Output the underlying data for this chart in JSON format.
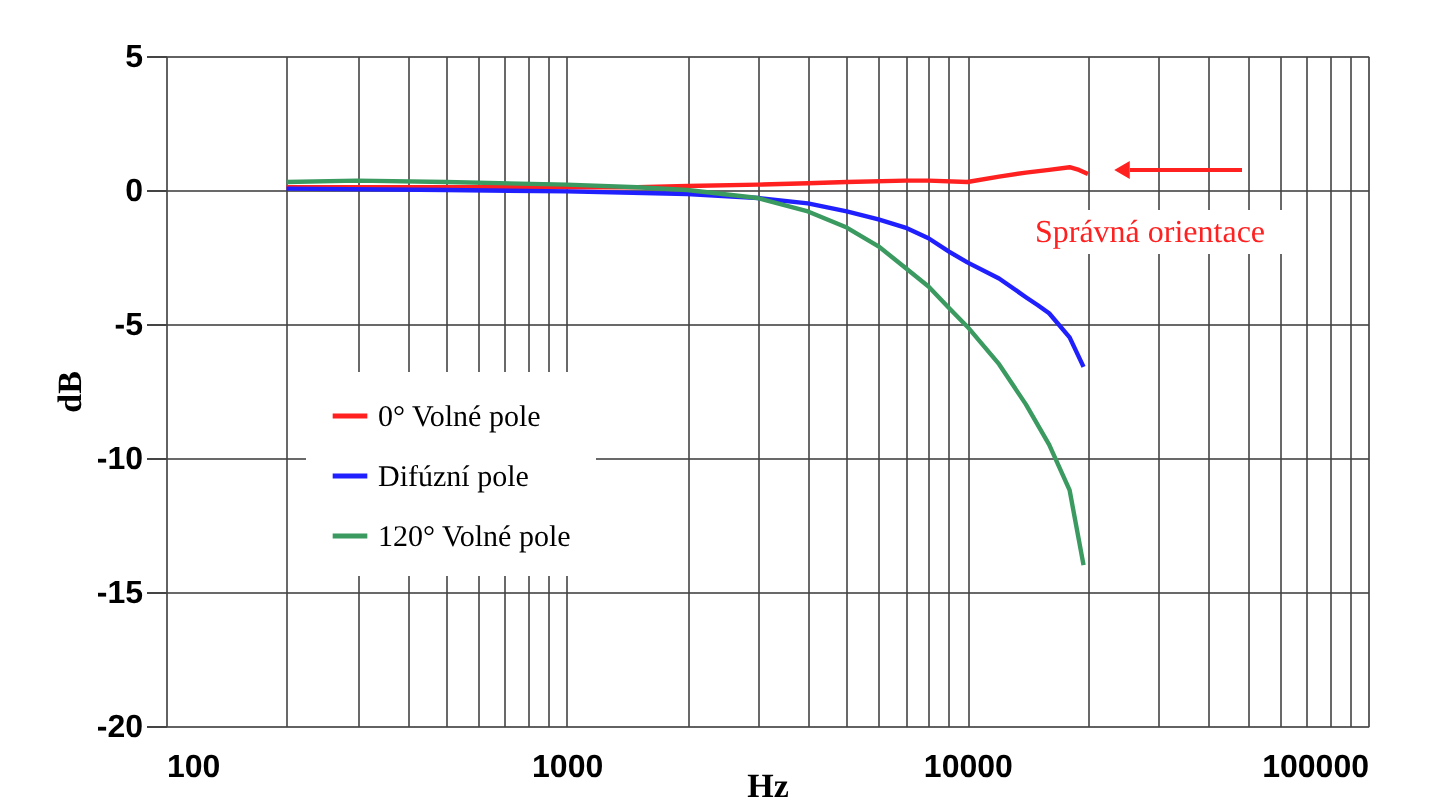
{
  "chart_data": {
    "type": "line",
    "xlabel": "Hz",
    "ylabel": "dB",
    "xlim": [
      100,
      100000
    ],
    "ylim": [
      -20,
      5
    ],
    "xticks": [
      100,
      {
        "value": 200,
        "label": null
      },
      {
        "value": 300,
        "label": null
      },
      {
        "value": 400,
        "label": null
      },
      {
        "value": 500,
        "label": null
      },
      {
        "value": 600,
        "label": null
      },
      {
        "value": 700,
        "label": null
      },
      {
        "value": 800,
        "label": null
      },
      {
        "value": 900,
        "label": null
      },
      1000,
      {
        "value": 2000,
        "label": null
      },
      {
        "value": 3000,
        "label": null
      },
      {
        "value": 4000,
        "label": null
      },
      {
        "value": 5000,
        "label": null
      },
      {
        "value": 6000,
        "label": null
      },
      {
        "value": 7000,
        "label": null
      },
      {
        "value": 8000,
        "label": null
      },
      {
        "value": 9000,
        "label": null
      },
      10000,
      {
        "value": 20000,
        "label": null
      },
      {
        "value": 30000,
        "label": null
      },
      {
        "value": 40000,
        "label": null
      },
      {
        "value": 50000,
        "label": null
      },
      {
        "value": 60000,
        "label": null
      },
      {
        "value": 70000,
        "label": null
      },
      {
        "value": 80000,
        "label": null
      },
      {
        "value": 90000,
        "label": null
      },
      100000
    ],
    "yticks": [
      -20,
      -15,
      -10,
      -5,
      0,
      5
    ],
    "log": "x",
    "grid": true,
    "legend": "left",
    "marker": "none",
    "line_style": "solid",
    "annotations": [
      "Správná orientace"
    ],
    "series": [
      {
        "name": "0° Volné pole",
        "color": "#ff2020",
        "x": [
          200,
          500,
          1000,
          1500,
          2000,
          3000,
          4000,
          5000,
          7000,
          8000,
          10000,
          12000,
          14000,
          16000,
          18000,
          19000,
          20000
        ],
        "values": [
          0.1,
          0.1,
          0.1,
          0.1,
          0.15,
          0.2,
          0.25,
          0.3,
          0.35,
          0.35,
          0.3,
          0.5,
          0.65,
          0.75,
          0.85,
          0.75,
          0.6
        ]
      },
      {
        "name": "Difúzní pole",
        "color": "#2020ff",
        "x": [
          200,
          500,
          1000,
          2000,
          3000,
          4000,
          5000,
          6000,
          7000,
          8000,
          9000,
          10000,
          12000,
          14000,
          15000,
          16000,
          18000,
          19500
        ],
        "values": [
          0.05,
          0.0,
          -0.05,
          -0.15,
          -0.3,
          -0.5,
          -0.8,
          -1.1,
          -1.4,
          -1.8,
          -2.3,
          -2.7,
          -3.3,
          -4.0,
          -4.3,
          -4.6,
          -5.5,
          -6.6
        ]
      },
      {
        "name": "120° Volné pole",
        "color": "#3a9a60",
        "x": [
          200,
          300,
          500,
          1000,
          1500,
          2000,
          3000,
          4000,
          5000,
          6000,
          7000,
          8000,
          9000,
          10000,
          12000,
          14000,
          16000,
          18000,
          19500
        ],
        "values": [
          0.3,
          0.35,
          0.3,
          0.2,
          0.1,
          0.0,
          -0.3,
          -0.8,
          -1.4,
          -2.1,
          -2.9,
          -3.6,
          -4.4,
          -5.1,
          -6.5,
          -8.0,
          -9.5,
          -11.2,
          -14.0
        ]
      }
    ]
  }
}
